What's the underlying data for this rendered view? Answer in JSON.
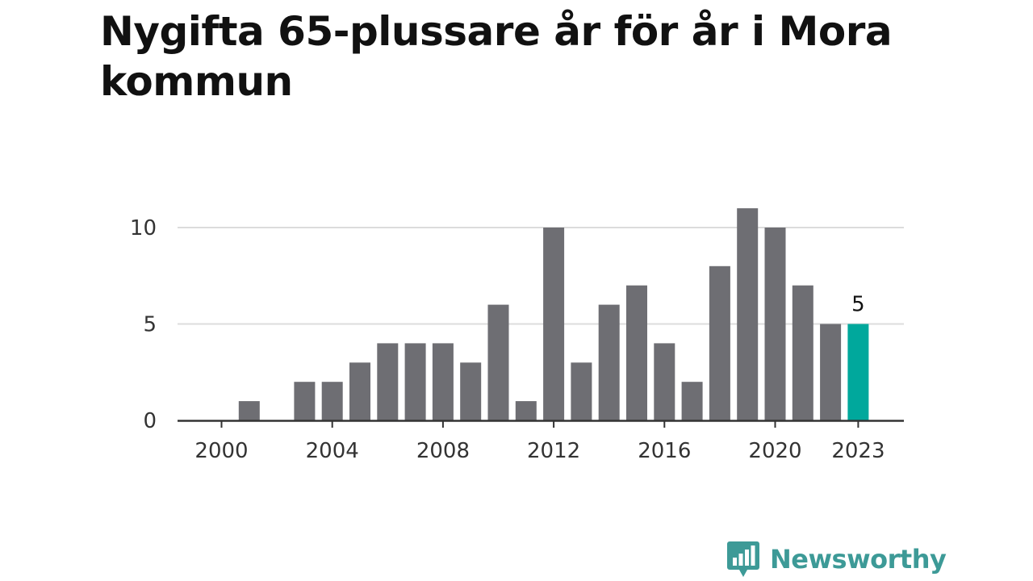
{
  "chart_data": {
    "type": "bar",
    "title": "Nygifta 65-plussare år för år i Mora kommun",
    "categories": [
      "2000",
      "2001",
      "2002",
      "2003",
      "2004",
      "2005",
      "2006",
      "2007",
      "2008",
      "2009",
      "2010",
      "2011",
      "2012",
      "2013",
      "2014",
      "2015",
      "2016",
      "2017",
      "2018",
      "2019",
      "2020",
      "2021",
      "2022",
      "2023"
    ],
    "values": [
      0,
      1,
      0,
      2,
      2,
      3,
      4,
      4,
      4,
      3,
      6,
      1,
      10,
      3,
      6,
      7,
      4,
      2,
      8,
      11,
      10,
      7,
      5,
      5
    ],
    "x_tick_labels": [
      "2000",
      "2004",
      "2008",
      "2012",
      "2016",
      "2020",
      "2023"
    ],
    "y_ticks": [
      0,
      5,
      10
    ],
    "ylim": [
      0,
      11
    ],
    "grid": true,
    "bar_color": "#6e6e73",
    "highlight_color": "#00a89c",
    "highlight_category": "2023",
    "highlight_label": "5",
    "xlabel": "",
    "ylabel": ""
  },
  "brand": {
    "name": "Newsworthy",
    "color": "#3d9a97",
    "icon": "newsworthy-logo-icon"
  }
}
